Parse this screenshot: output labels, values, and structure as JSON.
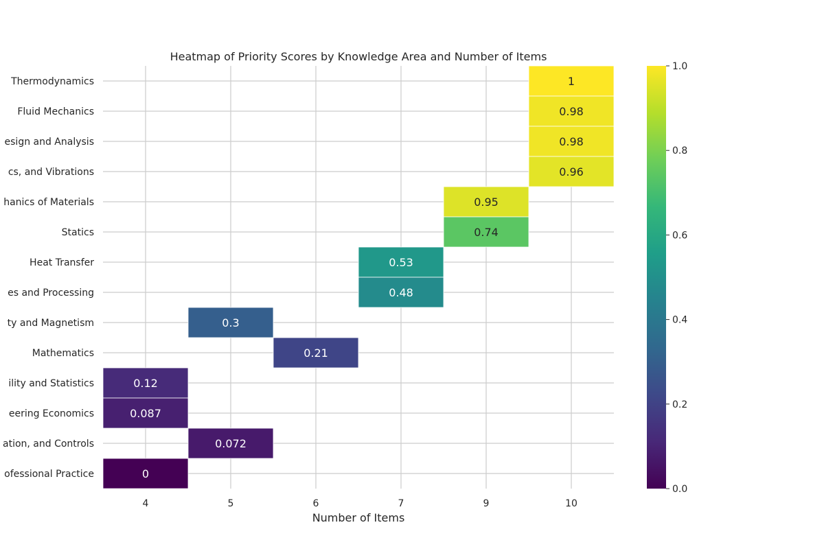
{
  "chart_data": {
    "type": "heatmap",
    "title": "Heatmap of Priority Scores by Knowledge Area and Number of Items",
    "xlabel": "Number of Items",
    "ylabel": "",
    "x_categories": [
      "4",
      "5",
      "6",
      "7",
      "9",
      "10"
    ],
    "y_categories": [
      "Thermodynamics",
      "Fluid Mechanics",
      "esign and Analysis",
      "cs, and Vibrations",
      "hanics of Materials",
      "Statics",
      "Heat Transfer",
      "es and Processing",
      "ty and Magnetism",
      "Mathematics",
      "ility and Statistics",
      "eering Economics",
      "ation, and Controls",
      "ofessional Practice"
    ],
    "cells": [
      {
        "y": "Thermodynamics",
        "x": "10",
        "value": 1,
        "label": "1"
      },
      {
        "y": "Fluid Mechanics",
        "x": "10",
        "value": 0.98,
        "label": "0.98"
      },
      {
        "y": "esign and Analysis",
        "x": "10",
        "value": 0.98,
        "label": "0.98"
      },
      {
        "y": "cs, and Vibrations",
        "x": "10",
        "value": 0.96,
        "label": "0.96"
      },
      {
        "y": "hanics of Materials",
        "x": "9",
        "value": 0.95,
        "label": "0.95"
      },
      {
        "y": "Statics",
        "x": "9",
        "value": 0.74,
        "label": "0.74"
      },
      {
        "y": "Heat Transfer",
        "x": "7",
        "value": 0.53,
        "label": "0.53"
      },
      {
        "y": "es and Processing",
        "x": "7",
        "value": 0.48,
        "label": "0.48"
      },
      {
        "y": "ty and Magnetism",
        "x": "5",
        "value": 0.3,
        "label": "0.3"
      },
      {
        "y": "Mathematics",
        "x": "6",
        "value": 0.21,
        "label": "0.21"
      },
      {
        "y": "ility and Statistics",
        "x": "4",
        "value": 0.12,
        "label": "0.12"
      },
      {
        "y": "eering Economics",
        "x": "4",
        "value": 0.087,
        "label": "0.087"
      },
      {
        "y": "ation, and Controls",
        "x": "5",
        "value": 0.072,
        "label": "0.072"
      },
      {
        "y": "ofessional Practice",
        "x": "4",
        "value": 0,
        "label": "0"
      }
    ],
    "colorbar": {
      "colormap": "viridis",
      "range": [
        0.0,
        1.0
      ],
      "ticks": [
        0.0,
        0.2,
        0.4,
        0.6,
        0.8,
        1.0
      ],
      "tick_labels": [
        "0.0",
        "0.2",
        "0.4",
        "0.6",
        "0.8",
        "1.0"
      ]
    },
    "grid": true,
    "colors": {
      "grid": "#cccccc",
      "text_dark": "#262626",
      "text_light": "#ffffff",
      "viridis_stops": [
        "#440154",
        "#482878",
        "#3e4989",
        "#31688e",
        "#26828e",
        "#1f9e89",
        "#35b779",
        "#6ece58",
        "#b5de2b",
        "#fde725"
      ]
    }
  }
}
